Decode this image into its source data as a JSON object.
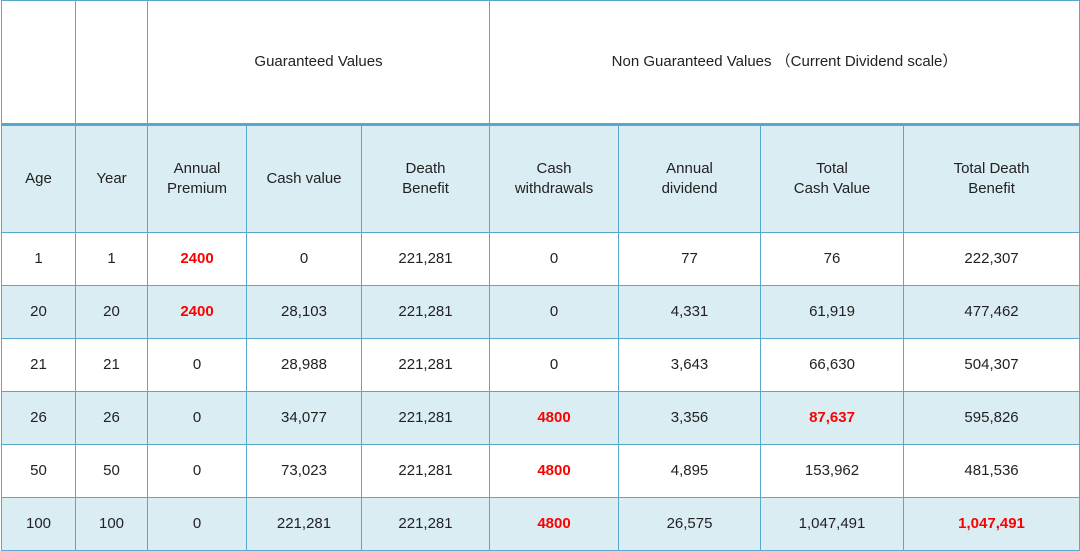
{
  "table": {
    "groups": [
      "Guaranteed Values",
      "Non Guaranteed Values （Current Dividend scale）"
    ],
    "headers": [
      [
        "Age"
      ],
      [
        "Year"
      ],
      [
        "Annual",
        "Premium"
      ],
      [
        "Cash value"
      ],
      [
        "Death",
        "Benefit"
      ],
      [
        "Cash",
        "withdrawals"
      ],
      [
        "Annual",
        "dividend"
      ],
      [
        "Total",
        "Cash Value"
      ],
      [
        "Total Death",
        "Benefit"
      ]
    ],
    "rows": [
      [
        "1",
        "1",
        "2400",
        "0",
        "221,281",
        "0",
        "77",
        "76",
        "222,307"
      ],
      [
        "20",
        "20",
        "2400",
        "28,103",
        "221,281",
        "0",
        "4,331",
        "61,919",
        "477,462"
      ],
      [
        "21",
        "21",
        "0",
        "28,988",
        "221,281",
        "0",
        "3,643",
        "66,630",
        "504,307"
      ],
      [
        "26",
        "26",
        "0",
        "34,077",
        "221,281",
        "4800",
        "3,356",
        "87,637",
        "595,826"
      ],
      [
        "50",
        "50",
        "0",
        "73,023",
        "221,281",
        "4800",
        "4,895",
        "153,962",
        "481,536"
      ],
      [
        "100",
        "100",
        "0",
        "221,281",
        "221,281",
        "4800",
        "26,575",
        "1,047,491",
        "1,047,491"
      ]
    ],
    "highlighted": [
      [
        0,
        2
      ],
      [
        1,
        2
      ],
      [
        3,
        5
      ],
      [
        3,
        7
      ],
      [
        4,
        5
      ],
      [
        5,
        5
      ],
      [
        5,
        8
      ]
    ],
    "highlight_color": "#ff0000"
  }
}
